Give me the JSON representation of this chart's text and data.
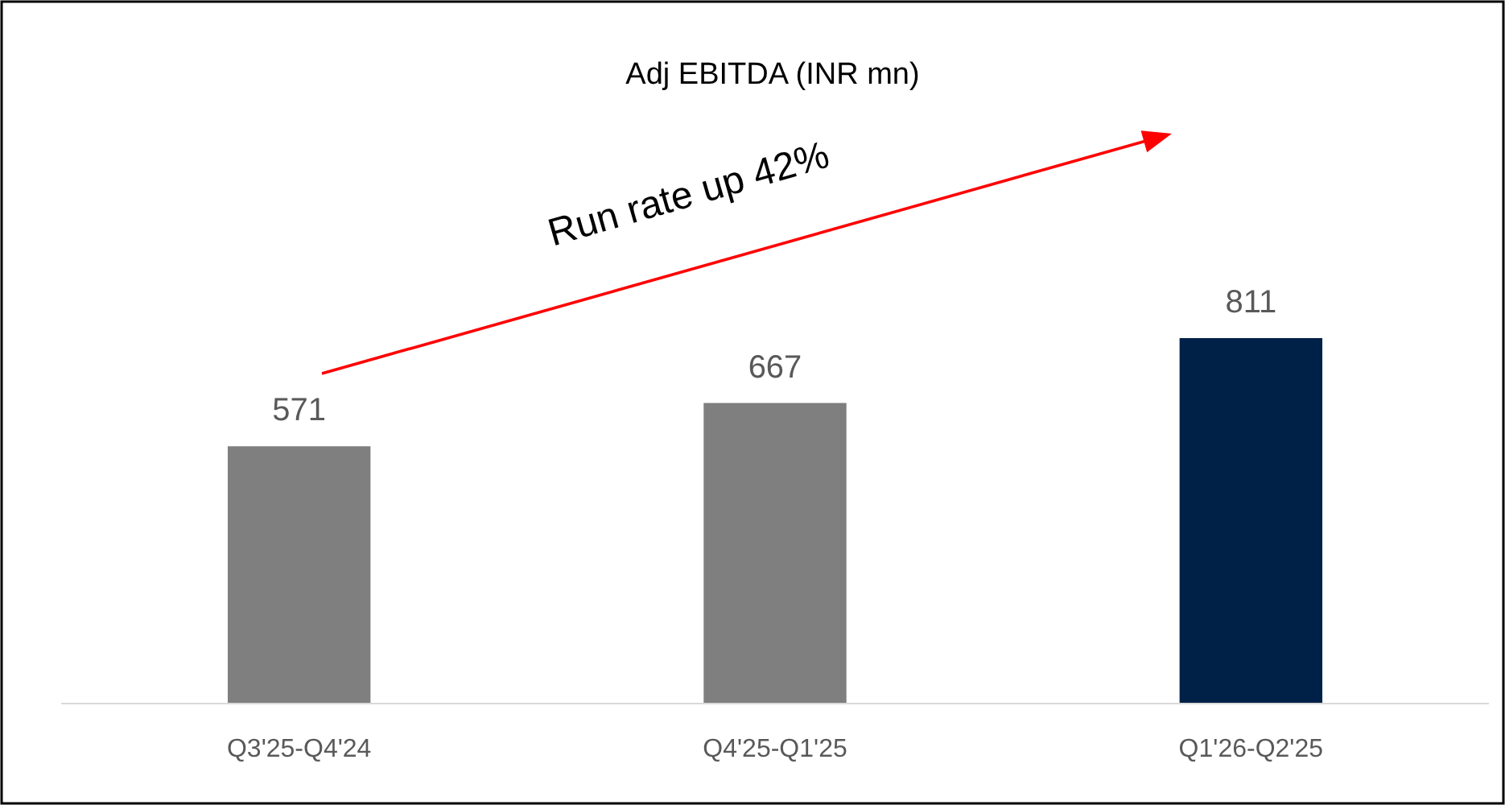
{
  "chart_data": {
    "type": "bar",
    "title": "Adj EBITDA (INR mn)",
    "categories": [
      "Q3'25-Q4'24",
      "Q4'25-Q1'25",
      "Q1'26-Q2'25"
    ],
    "values": [
      571,
      667,
      811
    ],
    "colors": [
      "#7f7f7f",
      "#7f7f7f",
      "#002147"
    ],
    "tick_labels": "x",
    "data_labels": true,
    "annotations": [
      "Run rate up 42%"
    ]
  }
}
